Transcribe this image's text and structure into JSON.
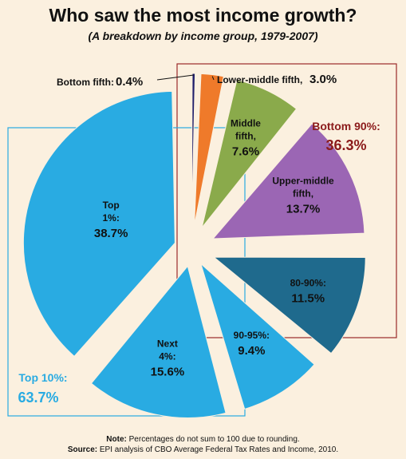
{
  "title": "Who saw the most income growth?",
  "subtitle": "(A breakdown by income group, 1979-2007)",
  "footer": {
    "note_label": "Note:",
    "note_text": " Percentages do not sum to 100 due to rounding.",
    "source_label": "Source:",
    "source_text": " EPI analysis of CBO Average Federal Tax Rates and Income, 2010."
  },
  "groups": [
    {
      "name": "Bottom 90%:",
      "value_label": "36.3%",
      "color": "#8b1a1a"
    },
    {
      "name": "Top 10%:",
      "value_label": "63.7%",
      "color": "#29abe2"
    }
  ],
  "chart_data": {
    "type": "pie",
    "title": "Who saw the most income growth?",
    "subtitle": "(A breakdown by income group, 1979-2007)",
    "unit": "%",
    "slices": [
      {
        "name": "Bottom fifth:",
        "value": 0.4,
        "value_label": "0.4%",
        "color": "#1f1f6b",
        "group": "Bottom 90%"
      },
      {
        "name": "Lower-middle fifth,",
        "value": 3.0,
        "value_label": "3.0%",
        "color": "#ef7a2a",
        "group": "Bottom 90%"
      },
      {
        "name": "Middle fifth,",
        "value": 7.6,
        "value_label": "7.6%",
        "color": "#8aaa4b",
        "group": "Bottom 90%"
      },
      {
        "name": "Upper-middle fifth,",
        "value": 13.7,
        "value_label": "13.7%",
        "color": "#9b66b4",
        "group": "Bottom 90%"
      },
      {
        "name": "80-90%:",
        "value": 11.5,
        "value_label": "11.5%",
        "color": "#1f6a8d",
        "group": "Bottom 90%"
      },
      {
        "name": "90-95%:",
        "value": 9.4,
        "value_label": "9.4%",
        "color": "#29abe2",
        "group": "Top 10%"
      },
      {
        "name": "Next 4%:",
        "value": 15.6,
        "value_label": "15.6%",
        "color": "#29abe2",
        "group": "Top 10%"
      },
      {
        "name": "Top 1%:",
        "value": 38.7,
        "value_label": "38.7%",
        "color": "#29abe2",
        "group": "Top 10%"
      }
    ]
  }
}
